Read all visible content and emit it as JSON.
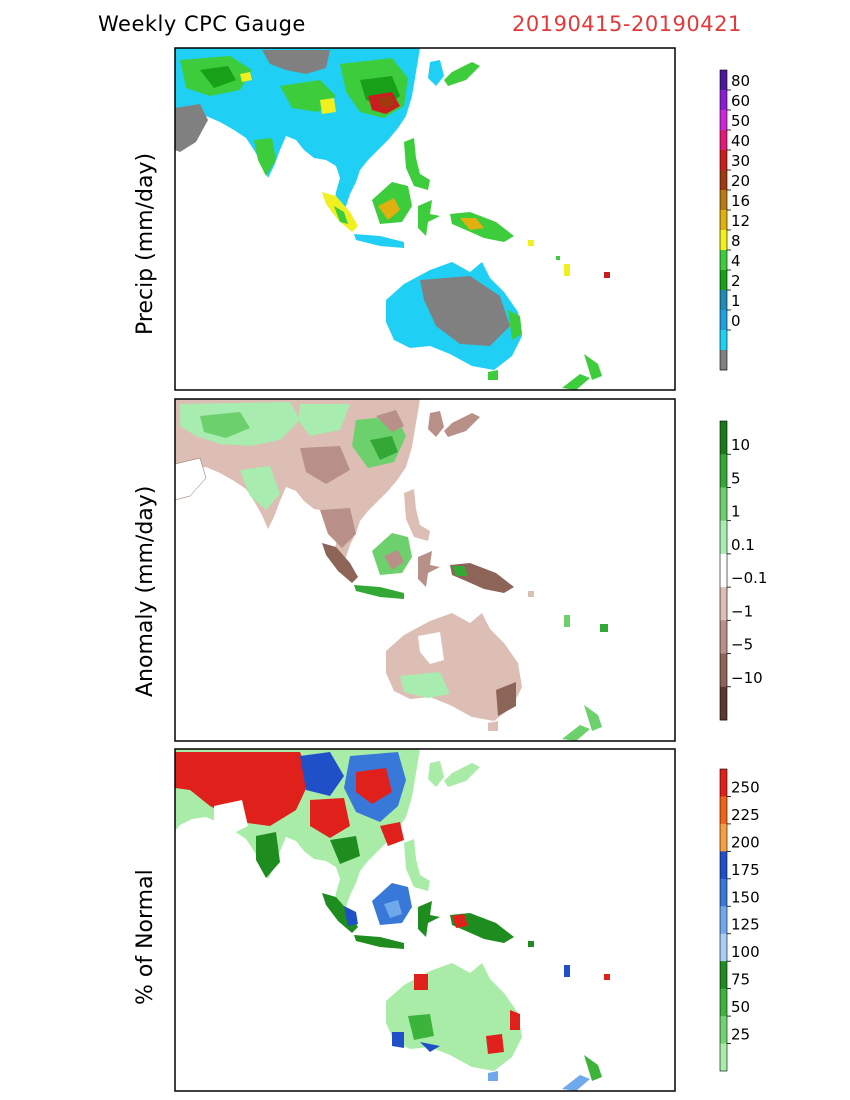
{
  "header": {
    "title": "Weekly CPC Gauge",
    "date_range": "20190415-20190421"
  },
  "panels": [
    {
      "ylabel": "Precip (mm/day)",
      "legend": {
        "labels": [
          "80",
          "60",
          "50",
          "40",
          "30",
          "20",
          "16",
          "12",
          "8",
          "4",
          "2",
          "1",
          "0"
        ],
        "colors": [
          "#4a1a9a",
          "#8c1ed0",
          "#c82ad8",
          "#e01a78",
          "#c81e1e",
          "#a03a10",
          "#b87a10",
          "#e0b010",
          "#f0f020",
          "#3ccc3c",
          "#18a018",
          "#1e8cb4",
          "#1ea0e0",
          "#20d0f4",
          "#808080"
        ]
      }
    },
    {
      "ylabel": "Anomaly (mm/day)",
      "legend": {
        "labels": [
          "10",
          "5",
          "1",
          "0.1",
          "−0.1",
          "−1",
          "−5",
          "−10"
        ],
        "colors": [
          "#1a7a1a",
          "#34a834",
          "#6cd06c",
          "#a8ecb0",
          "#ffffff",
          "#dcbeb4",
          "#b89088",
          "#8c6458",
          "#5a3a30"
        ]
      }
    },
    {
      "ylabel": "% of Normal",
      "legend": {
        "labels": [
          "250",
          "225",
          "200",
          "175",
          "150",
          "125",
          "100",
          "75",
          "50",
          "25"
        ],
        "colors": [
          "#e0201a",
          "#f06418",
          "#f8a040",
          "#2050c8",
          "#3878d8",
          "#70a8ec",
          "#a8d0f4",
          "#1e8c1e",
          "#3cb43c",
          "#70d470",
          "#a8eca8"
        ]
      }
    }
  ],
  "colors": {
    "ocean": "#ffffff",
    "frame": "#000000",
    "title_accent": "#e23a3a"
  }
}
